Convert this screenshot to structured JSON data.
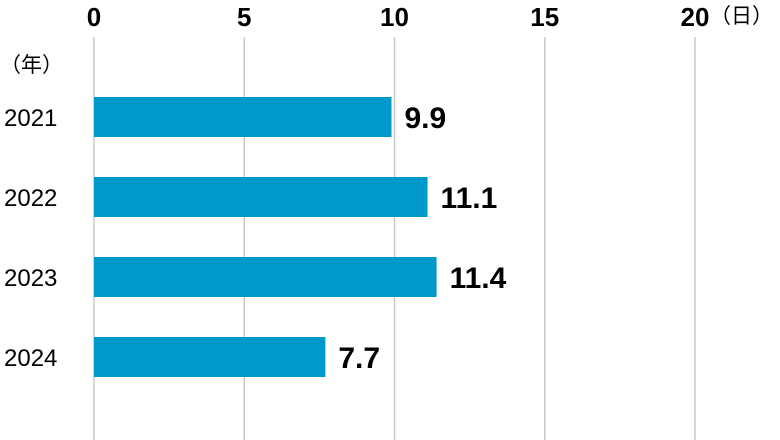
{
  "chart_data": {
    "type": "bar",
    "orientation": "horizontal",
    "categories": [
      "2021",
      "2022",
      "2023",
      "2024"
    ],
    "values": [
      9.9,
      11.1,
      11.4,
      7.7
    ],
    "value_labels": [
      "9.9",
      "11.1",
      "11.4",
      "7.7"
    ],
    "xticks": [
      0,
      5,
      10,
      15,
      20
    ],
    "xlim": [
      0,
      20
    ],
    "x_unit": "（日）",
    "y_unit": "（年）",
    "grid": "vertical",
    "bar_color": "#0099CC",
    "legend": "none"
  }
}
